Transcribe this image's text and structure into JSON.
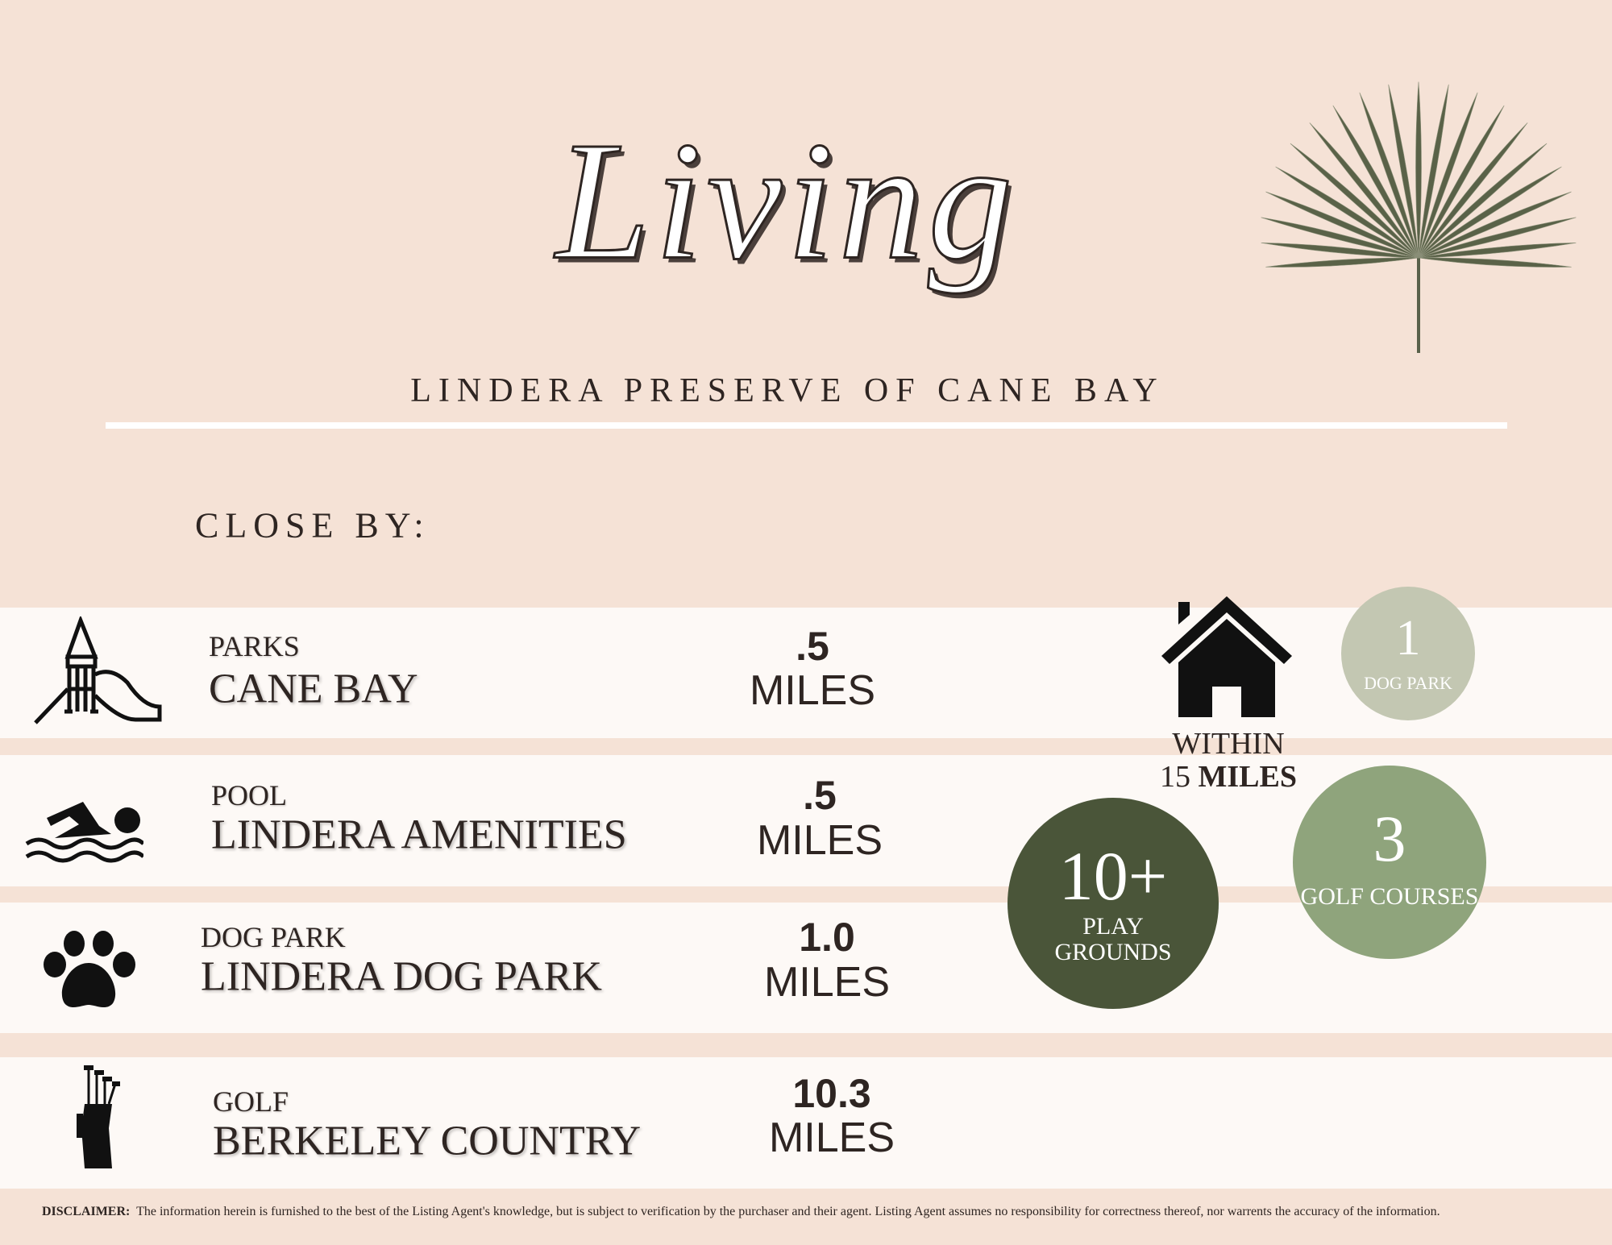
{
  "header": {
    "title": "Living",
    "subtitle": "LINDERA PRESERVE OF CANE BAY"
  },
  "section_label": "CLOSE BY:",
  "places": [
    {
      "category": "PARKS",
      "name": "CANE BAY",
      "distance": ".5",
      "unit": "MILES"
    },
    {
      "category": "POOL",
      "name": "LINDERA AMENITIES",
      "distance": ".5",
      "unit": "MILES"
    },
    {
      "category": "DOG PARK",
      "name": "LINDERA DOG PARK",
      "distance": "1.0",
      "unit": "MILES"
    },
    {
      "category": "GOLF",
      "name": "BERKELEY COUNTRY",
      "distance": "10.3",
      "unit": "MILES"
    }
  ],
  "radius": {
    "label": "WITHIN",
    "distance": "15",
    "unit": "MILES"
  },
  "highlights": [
    {
      "count": "1",
      "label": "DOG PARK"
    },
    {
      "count": "3",
      "label": "GOLF COURSES"
    },
    {
      "count": "10+",
      "label": "PLAY GROUNDS"
    }
  ],
  "disclaimer": {
    "label": "DISCLAIMER:",
    "text": "The information herein is furnished to the best of the Listing Agent's knowledge, but is subject to verification by the purchaser and their agent. Listing Agent assumes no responsibility for correctness thereof, nor warrents the accuracy of the information."
  }
}
